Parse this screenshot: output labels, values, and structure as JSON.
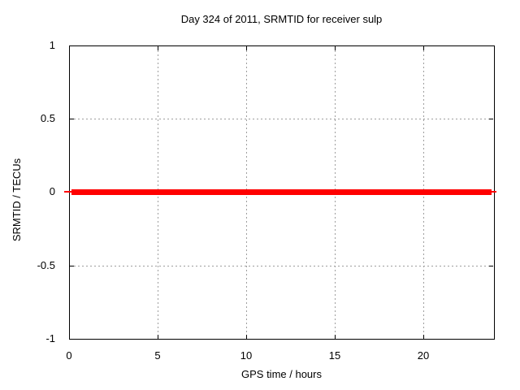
{
  "chart_data": {
    "type": "line",
    "title": "Day 324 of 2011, SRMTID for receiver sulp",
    "xlabel": "GPS time / hours",
    "ylabel": "SRMTID / TECUs",
    "xlim": [
      0,
      24
    ],
    "ylim": [
      -1,
      1
    ],
    "xticks": [
      "0",
      "5",
      "10",
      "15",
      "20"
    ],
    "yticks": [
      "1",
      "0.5",
      "0",
      "-0.5",
      "-1"
    ],
    "grid": "dotted",
    "legend_position": "none",
    "series": [
      {
        "name": "SRMTID",
        "color": "#ff0000",
        "line_width": "thick",
        "x": [
          0,
          24
        ],
        "y": [
          0,
          0
        ],
        "description": "constant zero value across entire day"
      }
    ]
  },
  "colors": {
    "series": "#ff0000",
    "grid": "#9e9e9e",
    "axis": "#000000",
    "background": "#ffffff"
  }
}
